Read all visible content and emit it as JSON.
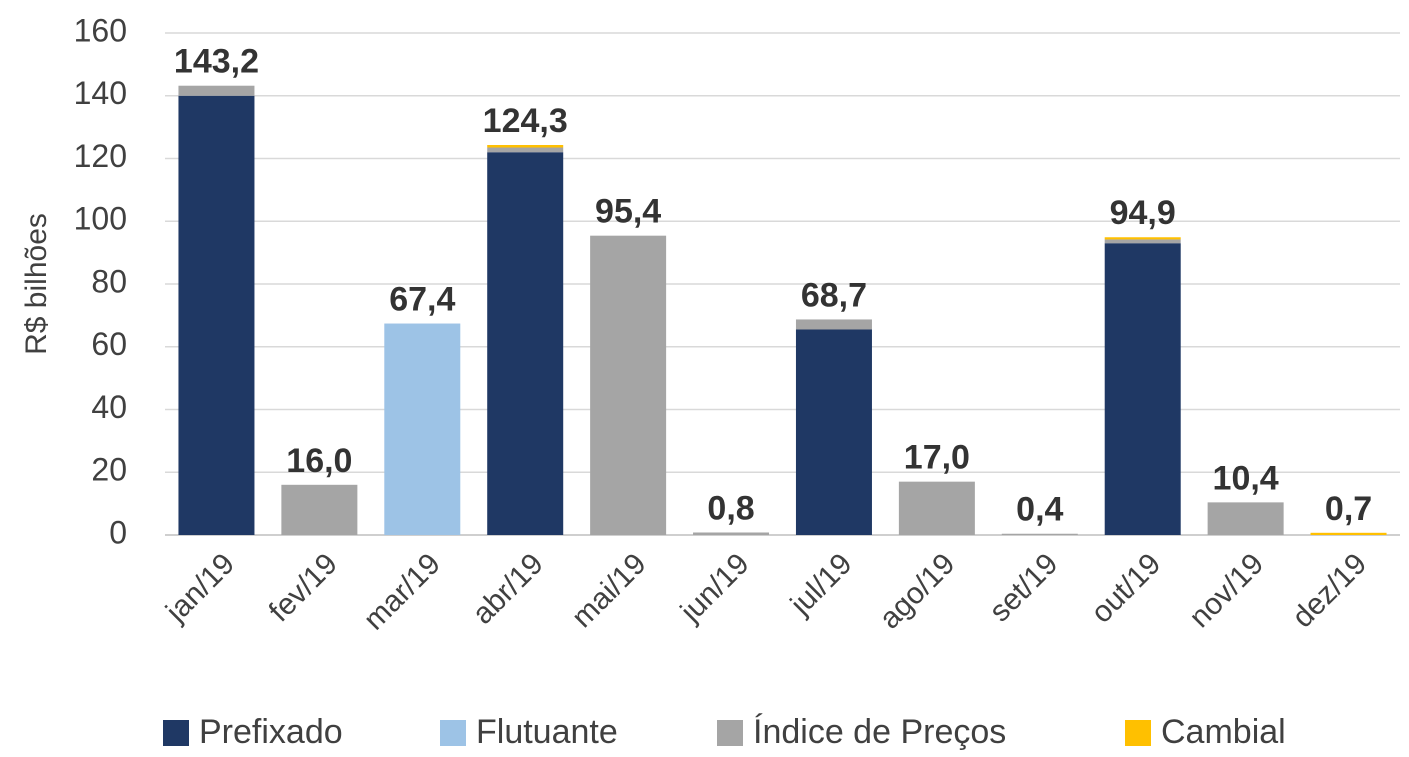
{
  "chart_data": {
    "type": "stacked_bar",
    "y_label": "R$ bilhões",
    "categories": [
      "jan/19",
      "fev/19",
      "mar/19",
      "abr/19",
      "mai/19",
      "jun/19",
      "jul/19",
      "ago/19",
      "set/19",
      "out/19",
      "nov/19",
      "dez/19"
    ],
    "series": [
      {
        "name": "Prefixado",
        "color": "#1f3864",
        "values": [
          140,
          0,
          0,
          122,
          0,
          0,
          65.5,
          0,
          0,
          93,
          0,
          0
        ]
      },
      {
        "name": "Flutuante",
        "color": "#9dc3e6",
        "values": [
          0,
          0,
          67.4,
          0,
          0,
          0,
          0,
          0,
          0,
          0,
          0,
          0
        ]
      },
      {
        "name": "Índice de Preços",
        "color": "#a5a5a5",
        "values": [
          3.2,
          16.0,
          0,
          1.5,
          95.4,
          0.8,
          3.2,
          17.0,
          0.4,
          1.2,
          10.4,
          0
        ]
      },
      {
        "name": "Cambial",
        "color": "#ffc000",
        "values": [
          0,
          0,
          0,
          0.8,
          0,
          0,
          0,
          0,
          0,
          0.7,
          0,
          0.7
        ]
      }
    ],
    "totals": [
      143.2,
      16.0,
      67.4,
      124.3,
      95.4,
      0.8,
      68.7,
      17.0,
      0.4,
      94.9,
      10.4,
      0.7
    ],
    "total_labels": [
      "143,2",
      "16,0",
      "67,4",
      "124,3",
      "95,4",
      "0,8",
      "68,7",
      "17,0",
      "0,4",
      "94,9",
      "10,4",
      "0,7"
    ],
    "ylim": [
      0,
      160
    ],
    "yticks": [
      0,
      20,
      40,
      60,
      80,
      100,
      120,
      140,
      160
    ],
    "grid": true,
    "legend": "bottom"
  }
}
